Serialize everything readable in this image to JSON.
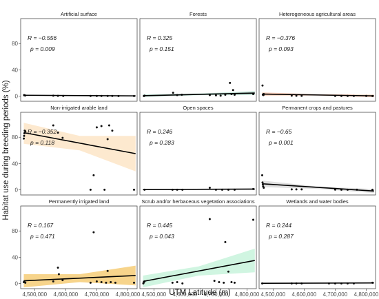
{
  "figure": {
    "y_axis_title": "Habitat use during breeding periods (%)",
    "x_axis_title": "UTM Latitude (m)"
  },
  "chart_data": {
    "type": "scatter",
    "facet_rows": 3,
    "facet_cols": 3,
    "xlim": [
      4455000,
      4830000
    ],
    "ylim": [
      -8,
      118
    ],
    "x_ticks": [
      4500000,
      4600000,
      4700000,
      4800000
    ],
    "x_tick_labels": [
      "4,500,000",
      "4,600,000",
      "4,700,000",
      "4,800,000"
    ],
    "y_ticks": [
      0,
      40,
      80
    ],
    "y_tick_labels": [
      "0",
      "40",
      "80"
    ],
    "grid": false,
    "panels": [
      {
        "title": "Artificial surface",
        "stat_r": "R = −0.556",
        "stat_p": "p = 0.009",
        "fit_line": [
          [
            4465000,
            1.2
          ],
          [
            4825000,
            0.2
          ]
        ],
        "ci_band": [
          [
            4465000,
            0.6,
            1.8
          ],
          [
            4645000,
            0.5,
            1.1
          ],
          [
            4825000,
            -0.4,
            0.8
          ]
        ],
        "band_color": "#d8d8d8",
        "points": [
          [
            4466000,
            1.5
          ],
          [
            4467000,
            1.0
          ],
          [
            4470000,
            0.8
          ],
          [
            4560000,
            0.5
          ],
          [
            4575000,
            0.3
          ],
          [
            4592000,
            0.2
          ],
          [
            4680000,
            0.2
          ],
          [
            4700000,
            0.1
          ],
          [
            4715000,
            0.1
          ],
          [
            4735000,
            0.1
          ],
          [
            4750000,
            0.1
          ],
          [
            4770000,
            0
          ],
          [
            4820000,
            0
          ]
        ]
      },
      {
        "title": "Forests",
        "stat_r": "R = 0.325",
        "stat_p": "p = 0.151",
        "fit_line": [
          [
            4465000,
            0.5
          ],
          [
            4825000,
            4.5
          ]
        ],
        "ci_band": [
          [
            4465000,
            -1.5,
            2.5
          ],
          [
            4645000,
            1.2,
            3.8
          ],
          [
            4825000,
            1.5,
            7.5
          ]
        ],
        "band_color": "#b8ddd0",
        "points": [
          [
            4468000,
            0
          ],
          [
            4470000,
            0.5
          ],
          [
            4562000,
            5
          ],
          [
            4575000,
            1.5
          ],
          [
            4590000,
            2
          ],
          [
            4680000,
            1.5
          ],
          [
            4700000,
            1
          ],
          [
            4715000,
            0.5
          ],
          [
            4730000,
            2
          ],
          [
            4745000,
            20
          ],
          [
            4750000,
            3
          ],
          [
            4755000,
            9
          ],
          [
            4760000,
            2
          ],
          [
            4820000,
            3
          ]
        ]
      },
      {
        "title": "Heterogeneous agricultural areas",
        "stat_r": "R = −0.376",
        "stat_p": "p = 0.093",
        "fit_line": [
          [
            4465000,
            3
          ],
          [
            4825000,
            0.2
          ]
        ],
        "ci_band": [
          [
            4465000,
            0.5,
            5.5
          ],
          [
            4645000,
            0.8,
            2.6
          ],
          [
            4825000,
            -1.8,
            2.2
          ]
        ],
        "band_color": "#ffc7ad",
        "points": [
          [
            4466000,
            16
          ],
          [
            4467000,
            2
          ],
          [
            4469000,
            1.5
          ],
          [
            4470000,
            3
          ],
          [
            4560000,
            0.5
          ],
          [
            4575000,
            0.4
          ],
          [
            4592000,
            0.3
          ],
          [
            4700000,
            0.2
          ],
          [
            4720000,
            0.2
          ],
          [
            4740000,
            0.1
          ],
          [
            4760000,
            0.1
          ],
          [
            4800000,
            0.1
          ],
          [
            4820000,
            0
          ]
        ]
      },
      {
        "title": "Non-irrigated arable land",
        "stat_r": "R = −0.352",
        "stat_p": "p = 0.118",
        "fit_line": [
          [
            4465000,
            87
          ],
          [
            4825000,
            55
          ]
        ],
        "ci_band": [
          [
            4465000,
            70,
            102
          ],
          [
            4645000,
            60,
            82
          ],
          [
            4825000,
            28,
            82
          ]
        ],
        "band_color": "#fde3c3",
        "points": [
          [
            4465000,
            78
          ],
          [
            4466000,
            82
          ],
          [
            4467000,
            86
          ],
          [
            4468000,
            90
          ],
          [
            4470000,
            89
          ],
          [
            4560000,
            98
          ],
          [
            4575000,
            87
          ],
          [
            4590000,
            79
          ],
          [
            4680000,
            0
          ],
          [
            4690000,
            22
          ],
          [
            4700000,
            95
          ],
          [
            4715000,
            97
          ],
          [
            4725000,
            0
          ],
          [
            4735000,
            77
          ],
          [
            4740000,
            98
          ],
          [
            4750000,
            90
          ],
          [
            4820000,
            0
          ]
        ]
      },
      {
        "title": "Open spaces",
        "stat_r": "R = 0.246",
        "stat_p": "p = 0.283",
        "fit_line": [
          [
            4465000,
            0.2
          ],
          [
            4825000,
            1
          ]
        ],
        "ci_band": [
          [
            4465000,
            -0.5,
            0.9
          ],
          [
            4645000,
            0,
            1
          ],
          [
            4825000,
            0.2,
            1.8
          ]
        ],
        "band_color": "#d8d8d8",
        "points": [
          [
            4470000,
            0
          ],
          [
            4560000,
            0
          ],
          [
            4575000,
            0
          ],
          [
            4592000,
            0
          ],
          [
            4680000,
            3
          ],
          [
            4700000,
            0
          ],
          [
            4720000,
            0
          ],
          [
            4740000,
            0
          ],
          [
            4760000,
            0
          ],
          [
            4820000,
            1
          ]
        ]
      },
      {
        "title": "Permanent crops and pastures",
        "stat_r": "R = −0.65",
        "stat_p": "p = 0.001",
        "fit_line": [
          [
            4465000,
            9
          ],
          [
            4825000,
            -2
          ]
        ],
        "ci_band": [
          [
            4465000,
            4,
            14
          ],
          [
            4645000,
            1.2,
            4.8
          ],
          [
            4825000,
            -5,
            1
          ]
        ],
        "band_color": "#d8d8d8",
        "points": [
          [
            4465000,
            22
          ],
          [
            4466000,
            11
          ],
          [
            4467000,
            8
          ],
          [
            4468000,
            5
          ],
          [
            4470000,
            3
          ],
          [
            4560000,
            0.5
          ],
          [
            4575000,
            0.5
          ],
          [
            4592000,
            0.5
          ],
          [
            4700000,
            0.2
          ],
          [
            4720000,
            0
          ],
          [
            4740000,
            0
          ],
          [
            4770000,
            0
          ],
          [
            4820000,
            0
          ]
        ]
      },
      {
        "title": "Permanently irrigated land",
        "stat_r": "R = 0.167",
        "stat_p": "p = 0.471",
        "fit_line": [
          [
            4465000,
            4
          ],
          [
            4825000,
            12
          ]
        ],
        "ci_band": [
          [
            4465000,
            -6,
            14
          ],
          [
            4645000,
            2,
            14
          ],
          [
            4825000,
            -3,
            27
          ]
        ],
        "band_color": "#f5c96e",
        "points": [
          [
            4465000,
            2
          ],
          [
            4467000,
            3
          ],
          [
            4470000,
            1
          ],
          [
            4560000,
            3
          ],
          [
            4575000,
            24
          ],
          [
            4578000,
            14
          ],
          [
            4590000,
            5
          ],
          [
            4680000,
            1
          ],
          [
            4690000,
            78
          ],
          [
            4700000,
            3
          ],
          [
            4715000,
            2
          ],
          [
            4730000,
            1
          ],
          [
            4735000,
            19
          ],
          [
            4745000,
            2
          ],
          [
            4760000,
            1
          ],
          [
            4820000,
            1
          ]
        ]
      },
      {
        "title": "Scrub and/or herbaceous vegetation associations",
        "stat_r": "R = 0.445",
        "stat_p": "p = 0.043",
        "fit_line": [
          [
            4465000,
            3
          ],
          [
            4825000,
            35
          ]
        ],
        "ci_band": [
          [
            4465000,
            -6,
            12
          ],
          [
            4645000,
            12,
            26
          ],
          [
            4825000,
            17,
            53
          ]
        ],
        "band_color": "#c4f2da",
        "points": [
          [
            4466000,
            0
          ],
          [
            4467000,
            1
          ],
          [
            4470000,
            3
          ],
          [
            4560000,
            1
          ],
          [
            4575000,
            2
          ],
          [
            4592000,
            0
          ],
          [
            4680000,
            98
          ],
          [
            4695000,
            4
          ],
          [
            4710000,
            2
          ],
          [
            4725000,
            1
          ],
          [
            4730000,
            63
          ],
          [
            4740000,
            18
          ],
          [
            4750000,
            2
          ],
          [
            4760000,
            1
          ],
          [
            4820000,
            97
          ]
        ]
      },
      {
        "title": "Wetlands and water bodies",
        "stat_r": "R = 0.244",
        "stat_p": "p = 0.287",
        "fit_line": [
          [
            4465000,
            0.2
          ],
          [
            4825000,
            0.7
          ]
        ],
        "ci_band": [
          [
            4465000,
            -0.3,
            0.7
          ],
          [
            4645000,
            0,
            0.8
          ],
          [
            4825000,
            0.1,
            1.3
          ]
        ],
        "band_color": "#d8d8d8",
        "points": [
          [
            4465000,
            0
          ],
          [
            4560000,
            0
          ],
          [
            4575000,
            0
          ],
          [
            4592000,
            0
          ],
          [
            4680000,
            0
          ],
          [
            4700000,
            0
          ],
          [
            4720000,
            0
          ],
          [
            4740000,
            0
          ],
          [
            4760000,
            0
          ],
          [
            4820000,
            1
          ]
        ]
      }
    ]
  }
}
